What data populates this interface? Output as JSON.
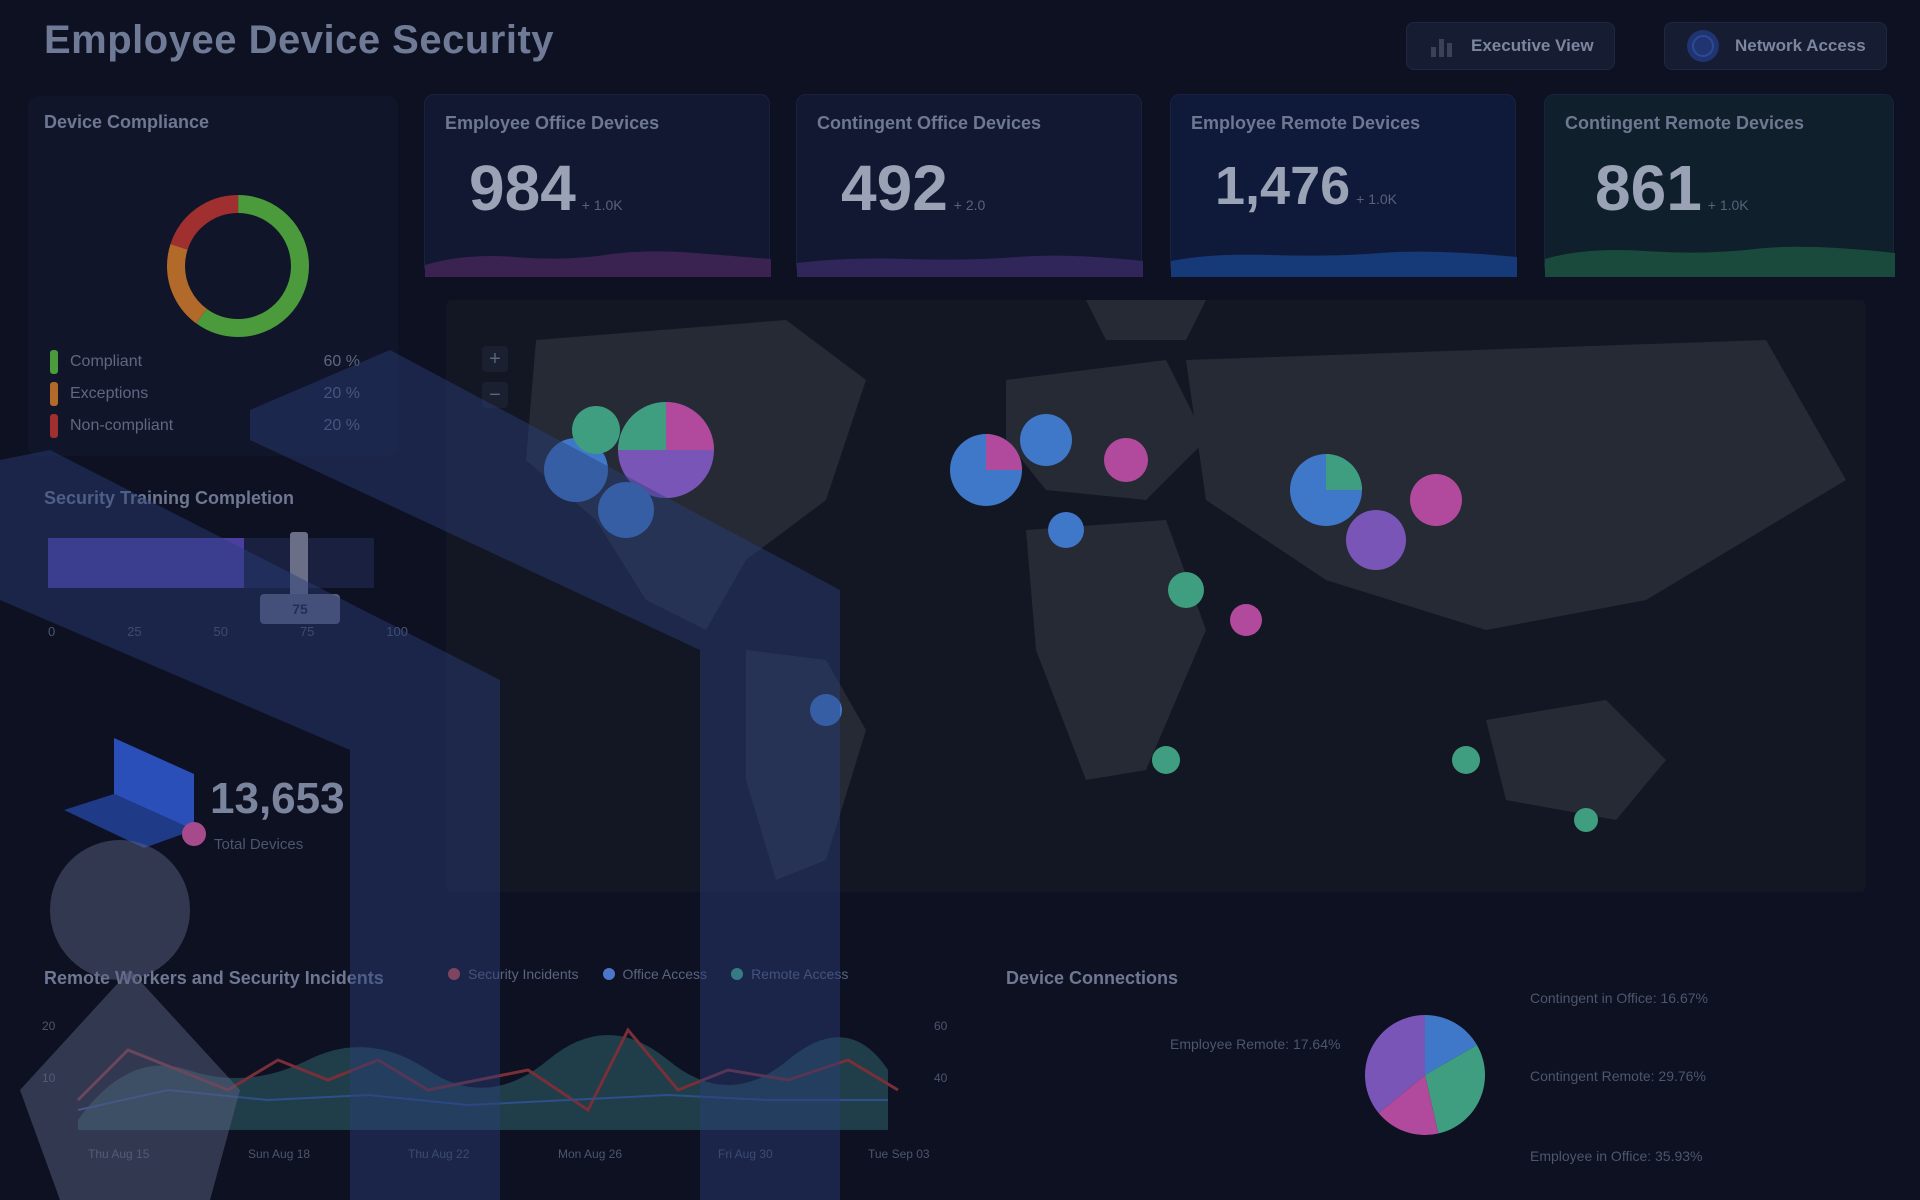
{
  "header": {
    "title": "Employee Device Security",
    "executive_view_label": "Executive View",
    "network_access_label": "Network Access"
  },
  "compliance": {
    "title": "Device Compliance",
    "items": [
      {
        "label": "Compliant",
        "value": "60 %",
        "color": "#4b9a3c"
      },
      {
        "label": "Exceptions",
        "value": "20 %",
        "color": "#b26a2a"
      },
      {
        "label": "Non-compliant",
        "value": "20 %",
        "color": "#a0302f"
      }
    ],
    "ring_fractions": [
      0.6,
      0.2,
      0.2
    ]
  },
  "kpis": [
    {
      "title": "Employee Office Devices",
      "value": "984",
      "unit": "+ 1.0K",
      "accent": "#6b3c8f"
    },
    {
      "title": "Contingent Office Devices",
      "value": "492",
      "unit": "+ 2.0",
      "accent": "#5a3ca0"
    },
    {
      "title": "Employee Remote Devices",
      "value": "1,476",
      "unit": "+ 1.0K",
      "accent": "#2c5fb8"
    },
    {
      "title": "Contingent Remote Devices",
      "value": "861",
      "unit": "+ 1.0K",
      "accent": "#2f9c6e"
    }
  ],
  "training": {
    "title": "Security Training Completion",
    "value": 0.6,
    "ticks": [
      "0",
      "25",
      "50",
      "75",
      "100"
    ],
    "marker_label": "75"
  },
  "total_devices": {
    "value": "13,653",
    "label": "Total Devices"
  },
  "remote_chart": {
    "title": "Remote Workers and Security Incidents",
    "legend": [
      {
        "label": "Security Incidents",
        "color": "#c44b4b"
      },
      {
        "label": "Office Access",
        "color": "#4c76c9"
      },
      {
        "label": "Remote Access",
        "color": "#3fae8c"
      }
    ],
    "x_labels": [
      "Thu Aug 15",
      "Sun Aug 18",
      "Thu Aug 22",
      "Mon Aug 26",
      "Fri Aug 30",
      "Tue Sep 03"
    ],
    "y_left": [
      "20",
      "10"
    ],
    "y_right": [
      "60",
      "40"
    ]
  },
  "connections": {
    "title": "Device Connections",
    "labels": [
      "Contingent in Office: 16.67%",
      "Contingent Remote: 29.76%",
      "Employee Remote: 17.64%",
      "Employee in Office: 35.93%"
    ],
    "slice_colors": [
      "#3f78c8",
      "#3f9e80",
      "#b14a9c",
      "#7a55b8"
    ],
    "slice_fractions": [
      0.1667,
      0.2976,
      0.1764,
      0.3593
    ]
  },
  "map": {
    "zoom_plus": "+",
    "zoom_minus": "−"
  }
}
